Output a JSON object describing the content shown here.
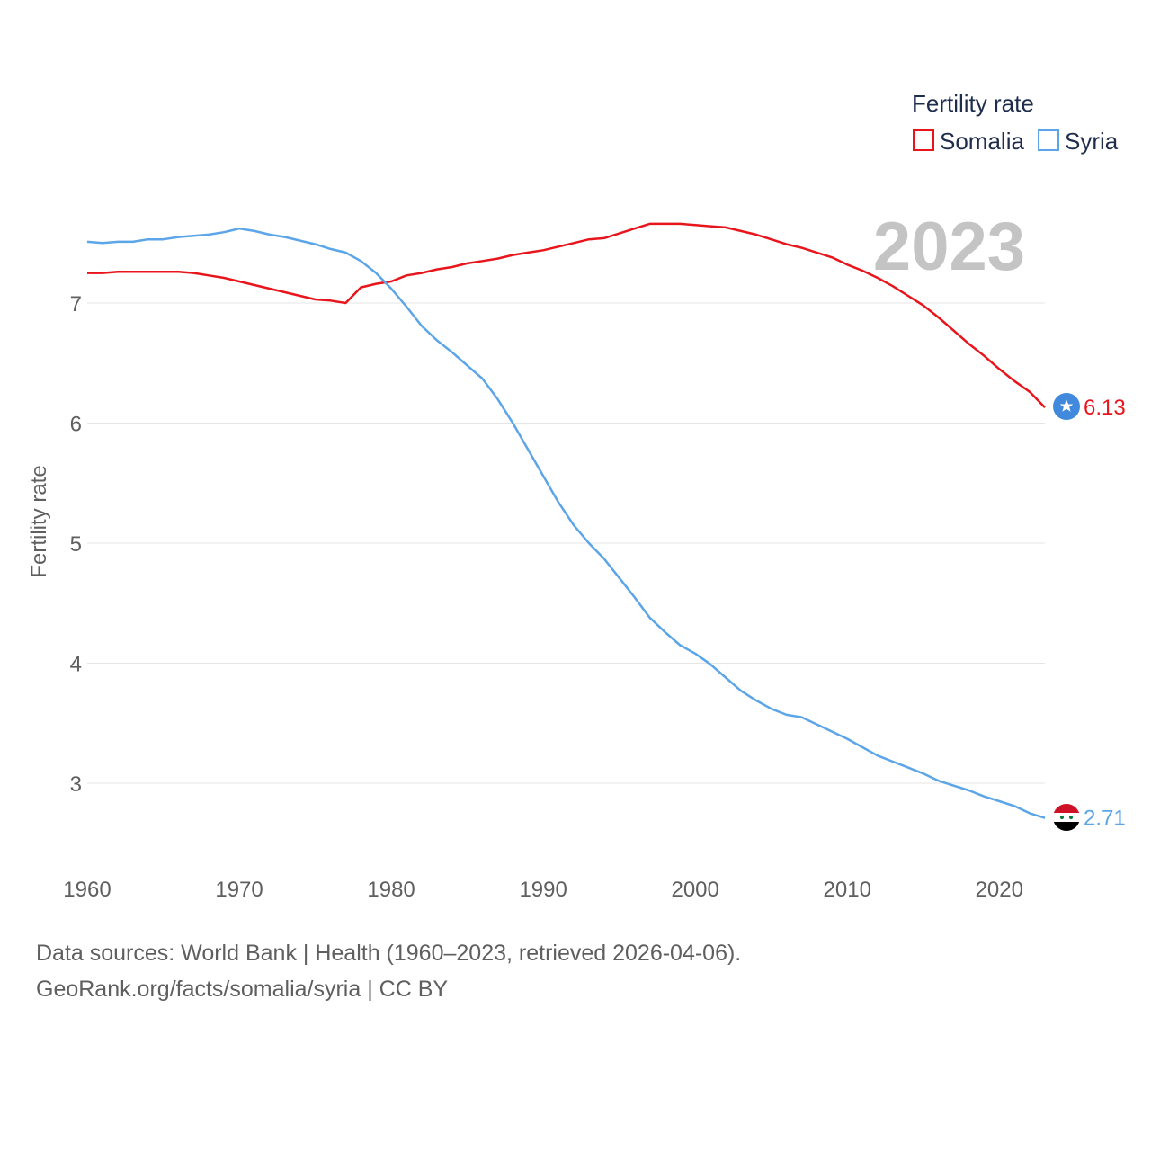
{
  "chart_data": {
    "type": "line",
    "year_label": "2023",
    "ylabel": "Fertility rate",
    "xlim": [
      1960,
      2023
    ],
    "ylim": [
      2.5,
      8.0
    ],
    "x_ticks": [
      "1960",
      "1970",
      "1980",
      "1990",
      "2000",
      "2010",
      "2020"
    ],
    "y_ticks": [
      "3",
      "4",
      "5",
      "6",
      "7"
    ],
    "legend": {
      "title": "Fertility rate",
      "position": "top-right"
    },
    "x": [
      1960,
      1961,
      1962,
      1963,
      1964,
      1965,
      1966,
      1967,
      1968,
      1969,
      1970,
      1971,
      1972,
      1973,
      1974,
      1975,
      1976,
      1977,
      1978,
      1979,
      1980,
      1981,
      1982,
      1983,
      1984,
      1985,
      1986,
      1987,
      1988,
      1989,
      1990,
      1991,
      1992,
      1993,
      1994,
      1995,
      1996,
      1997,
      1998,
      1999,
      2000,
      2001,
      2002,
      2003,
      2004,
      2005,
      2006,
      2007,
      2008,
      2009,
      2010,
      2011,
      2012,
      2013,
      2014,
      2015,
      2016,
      2017,
      2018,
      2019,
      2020,
      2021,
      2022,
      2023
    ],
    "series": [
      {
        "name": "Somalia",
        "color": "#e8161c",
        "end_label": "6.13",
        "values": [
          7.25,
          7.25,
          7.26,
          7.26,
          7.26,
          7.26,
          7.26,
          7.25,
          7.23,
          7.21,
          7.18,
          7.15,
          7.12,
          7.09,
          7.06,
          7.03,
          7.02,
          7.0,
          7.13,
          7.16,
          7.18,
          7.23,
          7.25,
          7.28,
          7.3,
          7.33,
          7.35,
          7.37,
          7.4,
          7.42,
          7.44,
          7.47,
          7.5,
          7.53,
          7.54,
          7.58,
          7.62,
          7.66,
          7.66,
          7.66,
          7.65,
          7.64,
          7.63,
          7.6,
          7.57,
          7.53,
          7.49,
          7.46,
          7.42,
          7.38,
          7.32,
          7.27,
          7.21,
          7.14,
          7.06,
          6.98,
          6.88,
          6.77,
          6.66,
          6.56,
          6.45,
          6.35,
          6.26,
          6.13
        ]
      },
      {
        "name": "Syria",
        "color": "#5ba5e8",
        "end_label": "2.71",
        "values": [
          7.51,
          7.5,
          7.51,
          7.51,
          7.53,
          7.53,
          7.55,
          7.56,
          7.57,
          7.59,
          7.62,
          7.6,
          7.57,
          7.55,
          7.52,
          7.49,
          7.45,
          7.42,
          7.35,
          7.25,
          7.12,
          6.97,
          6.81,
          6.69,
          6.59,
          6.48,
          6.37,
          6.2,
          6.0,
          5.78,
          5.56,
          5.34,
          5.15,
          5.0,
          4.87,
          4.71,
          4.55,
          4.38,
          4.26,
          4.15,
          4.08,
          3.99,
          3.88,
          3.77,
          3.69,
          3.62,
          3.57,
          3.55,
          3.49,
          3.43,
          3.37,
          3.3,
          3.23,
          3.18,
          3.13,
          3.08,
          3.02,
          2.98,
          2.94,
          2.89,
          2.85,
          2.81,
          2.75,
          2.71
        ]
      }
    ]
  },
  "source": {
    "line1": "Data sources: World Bank | Health (1960–2023, retrieved 2026-04-06).",
    "line2": "GeoRank.org/facts/somalia/syria | CC BY"
  }
}
